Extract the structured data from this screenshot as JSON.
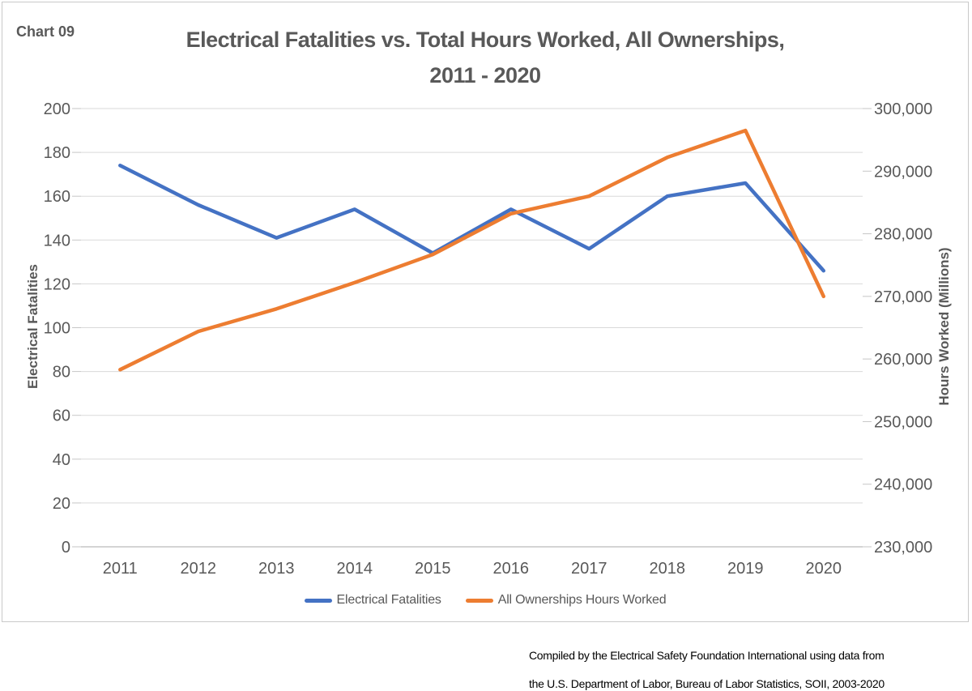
{
  "page": {
    "chart_number": "Chart 09",
    "footnote_lines": [
      "Compiled by the Electrical Safety Foundation International using data from",
      "the U.S. Department of Labor, Bureau of Labor Statistics, SOII, 2003-2020"
    ]
  },
  "colors": {
    "series_blue": "#4472C4",
    "series_orange": "#ED7D31",
    "text_gray": "#595959",
    "gridline": "#D9D9D9",
    "axis_line": "#C6C6C6",
    "frame_border": "#C9C9C9",
    "footnote_text": "#000000",
    "background": "#FFFFFF"
  },
  "chart_data": {
    "type": "line",
    "title": "Electrical Fatalities vs. Total Hours Worked, All Ownerships, 2011 - 2020",
    "title_lines": [
      "Electrical Fatalities vs. Total Hours Worked, All Ownerships,",
      "2011 - 2020"
    ],
    "categories": [
      "2011",
      "2012",
      "2013",
      "2014",
      "2015",
      "2016",
      "2017",
      "2018",
      "2019",
      "2020"
    ],
    "series": [
      {
        "name": "Electrical Fatalities",
        "axis": "left",
        "color": "#4472C4",
        "values": [
          174,
          156,
          141,
          154,
          134,
          154,
          136,
          160,
          166,
          126
        ]
      },
      {
        "name": "All Ownerships Hours Worked",
        "axis": "right",
        "color": "#ED7D31",
        "values": [
          258300,
          264400,
          268000,
          272200,
          276700,
          283200,
          286000,
          292200,
          296500,
          270000
        ]
      }
    ],
    "axes": {
      "left": {
        "label": "Electrical Fatalities",
        "min": 0,
        "max": 200,
        "step": 20
      },
      "right": {
        "label": "Hours Worked (Millions)",
        "min": 230000,
        "max": 300000,
        "step": 10000,
        "format": "#,##0"
      }
    },
    "grid": true,
    "legend_position": "bottom"
  }
}
